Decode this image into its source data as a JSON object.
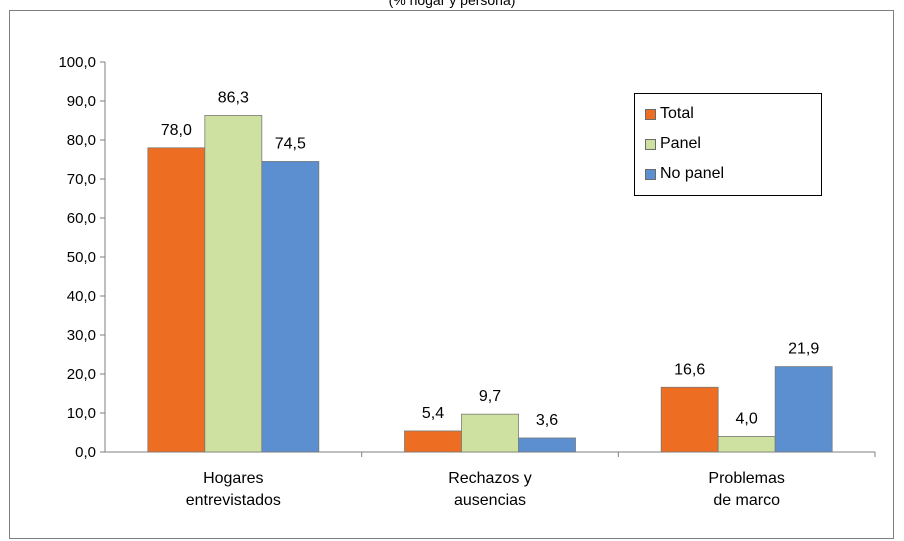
{
  "header_fragment": "(% hogar y persona)",
  "chart_data": {
    "type": "bar",
    "categories": [
      [
        "Hogares",
        "entrevistados"
      ],
      [
        "Rechazos y",
        "ausencias"
      ],
      [
        "Problemas",
        "de marco"
      ]
    ],
    "series": [
      {
        "name": "Total",
        "color": "#ed6d22",
        "values": [
          78.0,
          5.4,
          16.6
        ],
        "labels": [
          "78,0",
          "5,4",
          "16,6"
        ]
      },
      {
        "name": "Panel",
        "color": "#cfe1a1",
        "values": [
          86.3,
          9.7,
          4.0
        ],
        "labels": [
          "86,3",
          "9,7",
          "4,0"
        ]
      },
      {
        "name": "No panel",
        "color": "#5b8fd0",
        "values": [
          74.5,
          3.6,
          21.9
        ],
        "labels": [
          "74,5",
          "3,6",
          "21,9"
        ]
      }
    ],
    "ylim": [
      0,
      100
    ],
    "yticks": [
      "0,0",
      "10,0",
      "20,0",
      "30,0",
      "40,0",
      "50,0",
      "60,0",
      "70,0",
      "80,0",
      "90,0",
      "100,0"
    ],
    "grid": false,
    "legend_position": "top-right"
  }
}
